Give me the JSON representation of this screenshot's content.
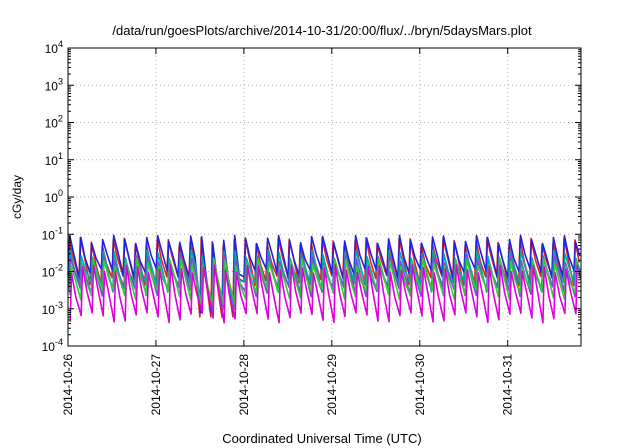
{
  "chart_data": {
    "type": "line",
    "title": "/data/run/goesPlots/archive/2014-10-31/20:00/flux/../bryn/5daysMars.plot",
    "xlabel": "Coordinated Universal Time (UTC)",
    "ylabel": "cGy/day",
    "y_scale": "log",
    "ylim": [
      0.0001,
      10000
    ],
    "y_ticks": [
      {
        "value": 0.0001,
        "base": "10",
        "exp": "-4"
      },
      {
        "value": 0.001,
        "base": "10",
        "exp": "-3"
      },
      {
        "value": 0.01,
        "base": "10",
        "exp": "-2"
      },
      {
        "value": 0.1,
        "base": "10",
        "exp": "-1"
      },
      {
        "value": 1,
        "base": "10",
        "exp": "0"
      },
      {
        "value": 10,
        "base": "10",
        "exp": "1"
      },
      {
        "value": 100,
        "base": "10",
        "exp": "2"
      },
      {
        "value": 1000,
        "base": "10",
        "exp": "3"
      },
      {
        "value": 10000,
        "base": "10",
        "exp": "4"
      }
    ],
    "x_ticks": [
      "2014-10-26",
      "2014-10-27",
      "2014-10-28",
      "2014-10-29",
      "2014-10-30",
      "2014-10-31"
    ],
    "xlim": [
      "2014-10-26T00:00",
      "2014-10-31T20:00"
    ],
    "grid": true,
    "legend": "none",
    "series": [
      {
        "color": "#ee2020",
        "peak": 0.065,
        "trough": 0.006
      },
      {
        "color": "#2222dd",
        "peak": 0.075,
        "trough": 0.009
      },
      {
        "color": "#00aaaa",
        "peak": 0.03,
        "trough": 0.004
      },
      {
        "color": "#7a4fd6",
        "peak": 0.022,
        "trough": 0.003
      },
      {
        "color": "#33cc33",
        "peak": 0.018,
        "trough": 0.0025
      },
      {
        "color": "#dd00dd",
        "peak": 0.012,
        "trough": 0.0006
      }
    ],
    "pattern": {
      "spikes_per_day": 8,
      "note_gap_start": "2014-10-27T20:00",
      "gap_trough": 0.0006
    }
  }
}
